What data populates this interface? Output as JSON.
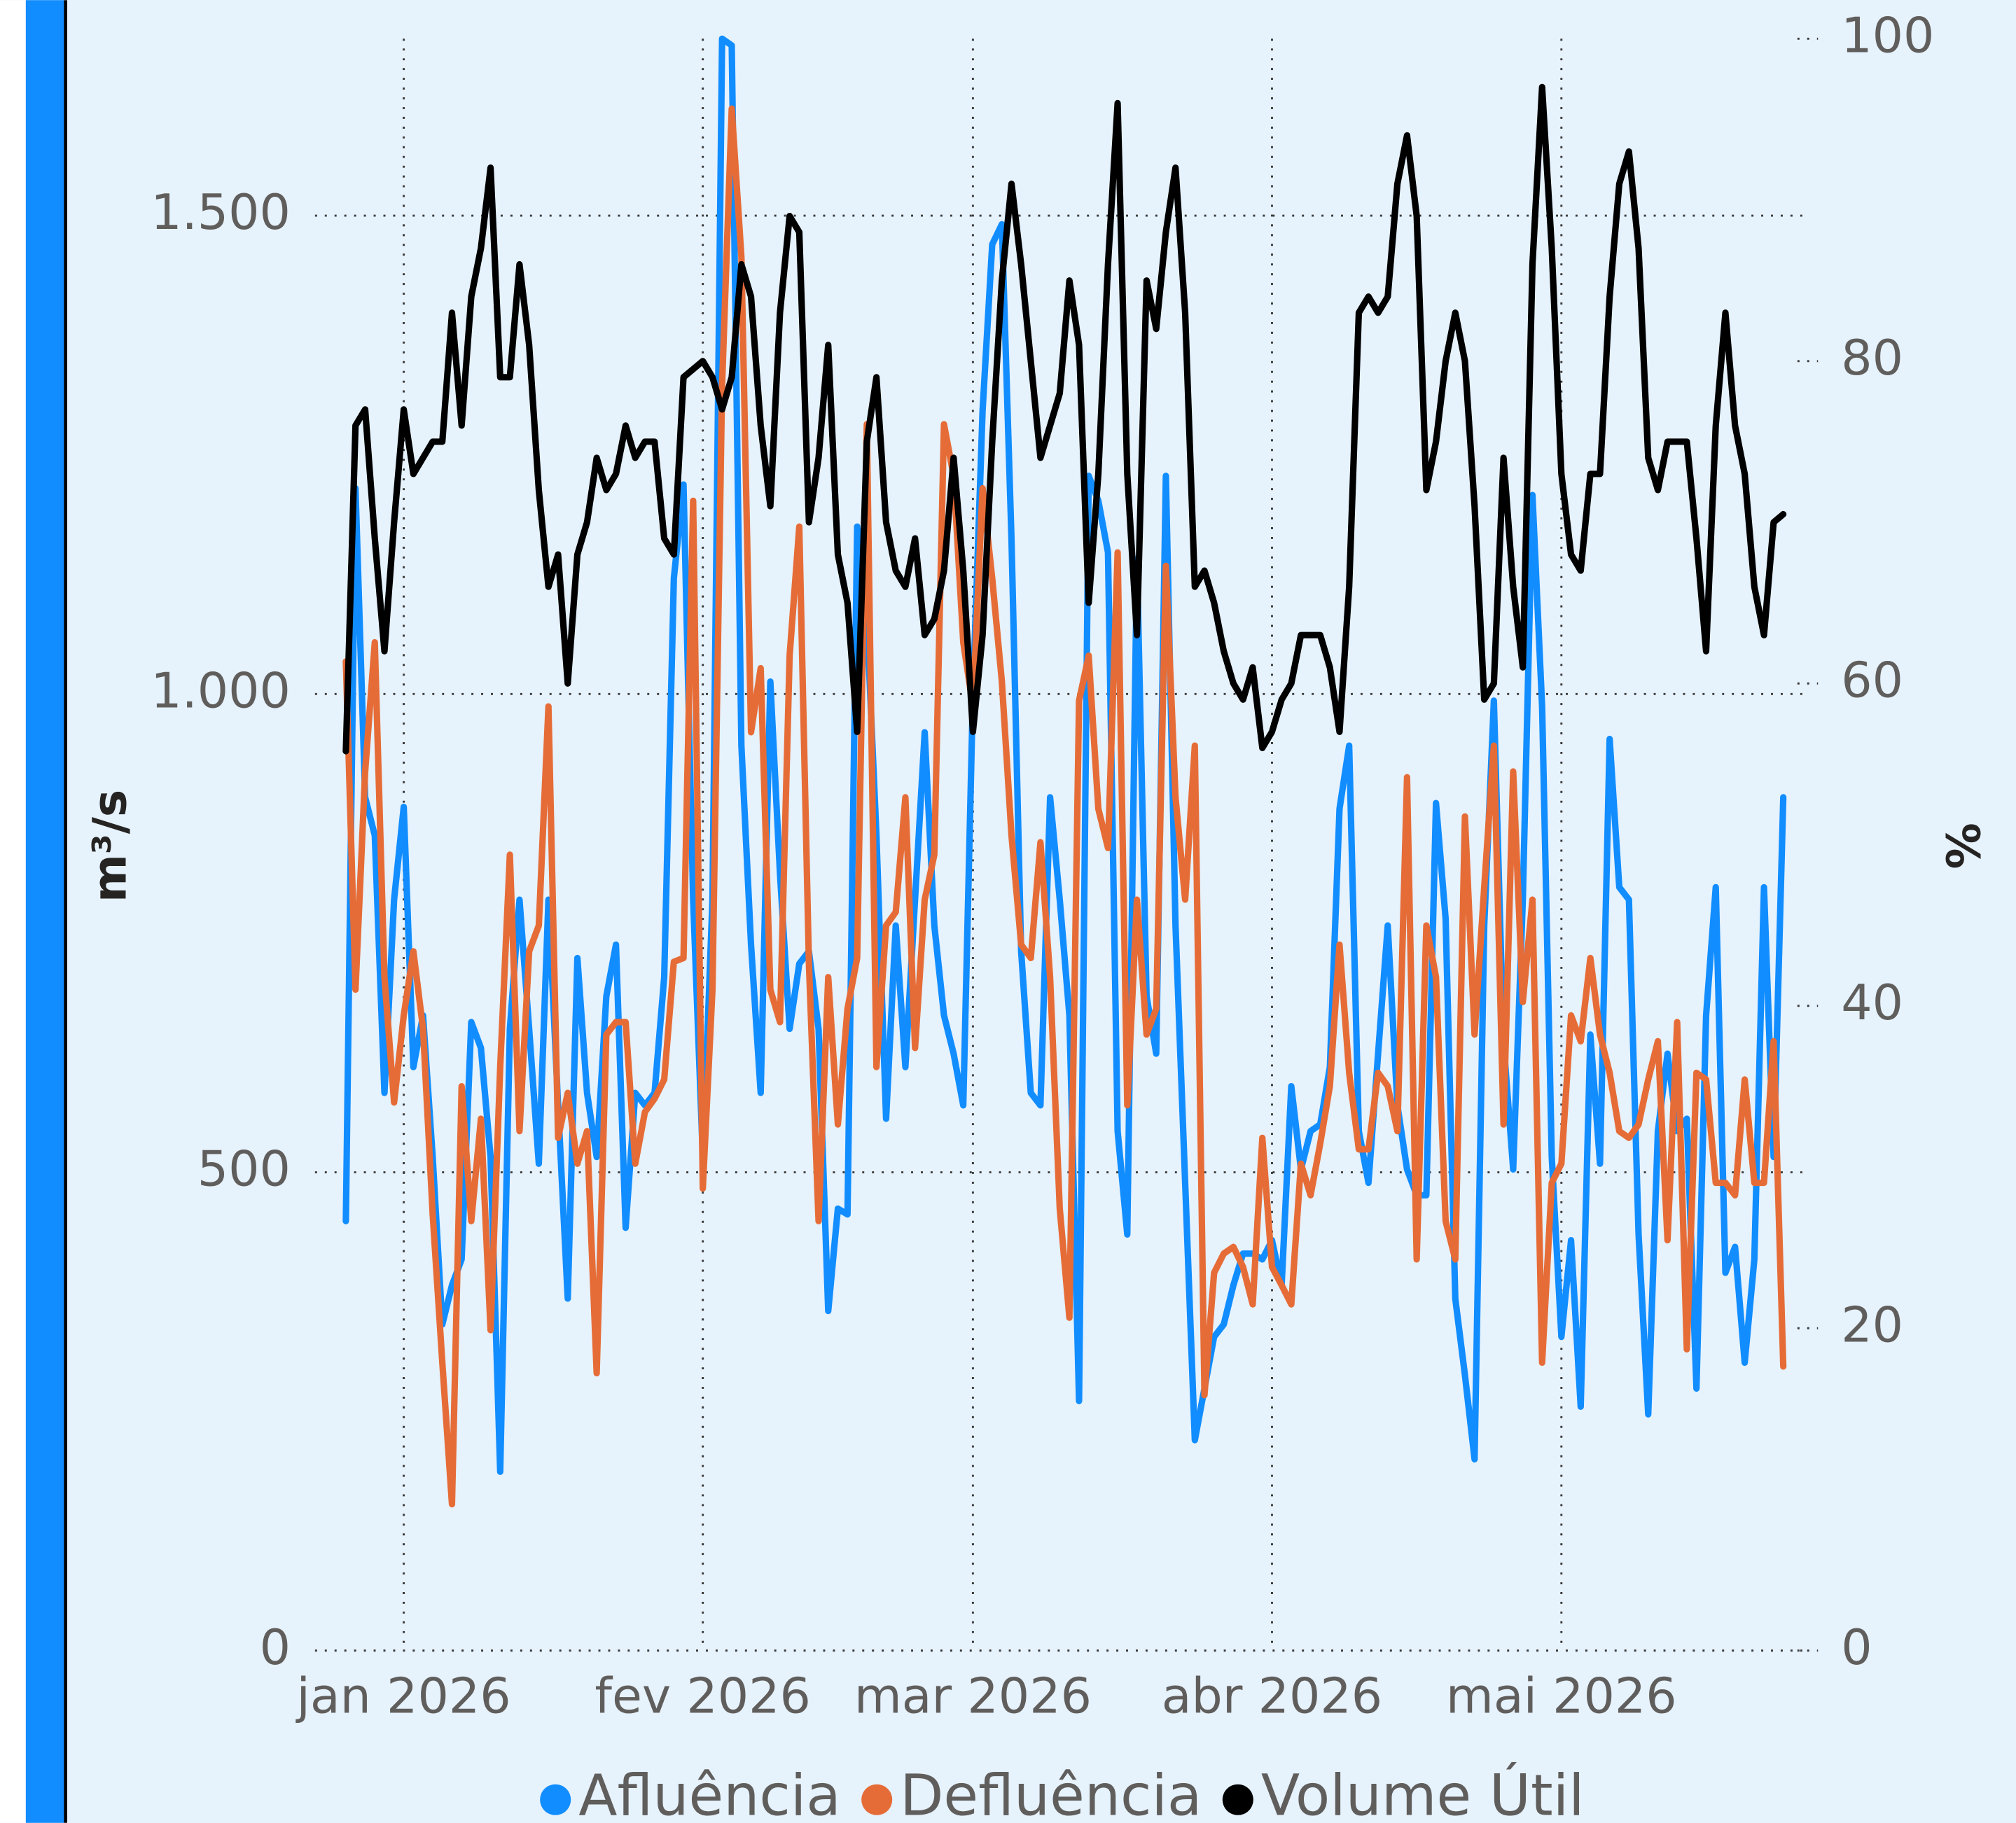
{
  "chart_data": {
    "type": "line",
    "y_axis_label": "m³/s",
    "y2_axis_label": "%",
    "categories": [
      null,
      null,
      null,
      null,
      null,
      null,
      "jan 2026",
      null,
      null,
      null,
      null,
      null,
      null,
      null,
      null,
      null,
      null,
      null,
      null,
      null,
      null,
      null,
      null,
      null,
      null,
      null,
      null,
      null,
      null,
      null,
      null,
      null,
      null,
      null,
      null,
      null,
      null,
      "fev 2026",
      null,
      null,
      null,
      null,
      null,
      null,
      null,
      null,
      null,
      null,
      null,
      null,
      null,
      null,
      null,
      null,
      null,
      null,
      null,
      null,
      null,
      null,
      null,
      null,
      null,
      null,
      null,
      "mar 2026",
      null,
      null,
      null,
      null,
      null,
      null,
      null,
      null,
      null,
      null,
      null,
      null,
      null,
      null,
      null,
      null,
      null,
      null,
      null,
      null,
      null,
      null,
      null,
      null,
      null,
      null,
      null,
      null,
      null,
      null,
      "abr 2026",
      null,
      null,
      null,
      null,
      null,
      null,
      null,
      null,
      null,
      null,
      null,
      null,
      null,
      null,
      null,
      null,
      null,
      null,
      null,
      null,
      null,
      null,
      null,
      null,
      null,
      null,
      null,
      null,
      null,
      "mai 2026",
      null,
      null,
      null,
      null,
      null,
      null,
      null,
      null,
      null,
      null,
      null,
      null,
      null,
      null,
      null,
      null,
      null,
      null,
      null,
      null,
      null,
      null,
      null
    ],
    "series": [
      {
        "name": "Afluência",
        "color": "#118dff",
        "axis": "y",
        "values": [
          449,
          1215,
          892,
          852,
          583,
          785,
          882,
          610,
          664,
          516,
          341,
          382,
          409,
          657,
          630,
          516,
          187,
          650,
          785,
          650,
          509,
          785,
          570,
          368,
          724,
          583,
          516,
          684,
          738,
          442,
          583,
          570,
          583,
          704,
          1121,
          1219,
          785,
          516,
          785,
          1685,
          1678,
          946,
          738,
          583,
          1013,
          812,
          650,
          718,
          731,
          650,
          355,
          462,
          456,
          1175,
          1081,
          852,
          556,
          758,
          610,
          785,
          960,
          758,
          664,
          624,
          570,
          1000,
          1296,
          1470,
          1491,
          1161,
          731,
          583,
          570,
          892,
          785,
          664,
          261,
          1228,
          1202,
          1148,
          543,
          435,
          1141,
          684,
          624,
          1228,
          758,
          489,
          220,
          274,
          328,
          341,
          382,
          415,
          415,
          409,
          429,
          382,
          590,
          503,
          543,
          550,
          610,
          880,
          946,
          543,
          489,
          624,
          758,
          570,
          503,
          476,
          476,
          886,
          765,
          368,
          288,
          200,
          758,
          993,
          637,
          503,
          785,
          1208,
          987,
          516,
          328,
          429,
          255,
          644,
          509,
          953,
          798,
          785,
          435,
          247,
          543,
          624,
          543,
          556,
          274,
          664,
          798,
          395,
          422,
          301,
          409,
          798,
          516,
          892
        ]
      },
      {
        "name": "Defluência",
        "color": "#e66c37",
        "axis": "y",
        "values": [
          1034,
          691,
          919,
          1054,
          704,
          573,
          664,
          731,
          650,
          456,
          301,
          153,
          590,
          449,
          556,
          335,
          610,
          832,
          543,
          731,
          758,
          987,
          536,
          583,
          509,
          543,
          290,
          644,
          657,
          657,
          509,
          563,
          577,
          597,
          720,
          724,
          1202,
          483,
          691,
          1323,
          1612,
          1457,
          960,
          1027,
          691,
          657,
          1040,
          1175,
          718,
          449,
          704,
          550,
          671,
          724,
          1282,
          610,
          758,
          772,
          892,
          630,
          785,
          832,
          1282,
          1228,
          1054,
          987,
          1215,
          1121,
          1013,
          852,
          738,
          724,
          845,
          704,
          462,
          348,
          993,
          1040,
          880,
          839,
          1148,
          570,
          785,
          644,
          671,
          1134,
          892,
          785,
          946,
          267,
          395,
          415,
          422,
          401,
          362,
          536,
          401,
          382,
          362,
          509,
          476,
          530,
          590,
          738,
          604,
          524,
          524,
          604,
          590,
          543,
          913,
          409,
          758,
          704,
          449,
          409,
          872,
          644,
          798,
          946,
          550,
          919,
          678,
          785,
          301,
          489,
          509,
          664,
          637,
          724,
          644,
          604,
          543,
          536,
          550,
          597,
          637,
          429,
          657,
          315,
          604,
          597,
          489,
          489,
          476,
          597,
          489,
          489,
          637,
          297
        ]
      },
      {
        "name": "Volume Útil",
        "color": "#000000",
        "axis": "y2",
        "values": [
          55.8,
          76,
          77,
          69,
          62,
          70,
          77,
          73,
          74,
          75,
          75,
          83,
          76,
          84,
          87,
          92,
          79,
          79,
          86,
          81,
          72,
          66,
          68,
          60,
          68,
          70,
          74,
          72,
          73,
          76,
          74,
          75,
          75,
          69,
          68,
          79,
          79.5,
          80,
          79,
          77,
          79,
          86,
          84,
          76,
          71,
          83,
          89,
          88,
          70,
          74,
          81,
          68,
          65,
          57,
          75,
          79,
          70,
          67,
          66,
          69,
          63,
          64,
          67,
          74,
          67,
          57,
          63,
          75,
          85,
          91,
          86,
          80,
          74,
          76,
          78,
          85,
          81,
          65,
          73,
          86,
          96,
          73,
          63,
          85,
          82,
          88,
          92,
          83,
          66,
          67,
          65,
          62,
          60,
          59,
          61,
          56,
          57,
          59,
          60,
          63,
          63,
          63,
          61,
          57,
          66,
          83,
          84,
          83,
          84,
          91,
          94,
          89,
          72,
          75,
          80,
          83,
          80,
          71,
          59,
          60,
          74,
          66,
          61,
          86,
          97,
          87,
          73,
          68,
          67,
          73,
          73,
          84,
          91,
          93,
          87,
          74,
          72,
          75,
          75,
          75,
          69,
          62,
          76,
          83,
          76,
          73,
          66,
          63,
          70,
          70.5
        ]
      }
    ],
    "ylim": [
      0,
      1685
    ],
    "yticks": [
      0,
      {
        "value": 500,
        "label": "500"
      },
      {
        "value": 1000,
        "label": "1.000"
      },
      {
        "value": 1500,
        "label": "1.500"
      }
    ],
    "y2lim": [
      0,
      100
    ],
    "y2ticks": [
      0,
      20,
      40,
      60,
      80,
      100
    ],
    "grid": true,
    "legend": "bottom"
  }
}
